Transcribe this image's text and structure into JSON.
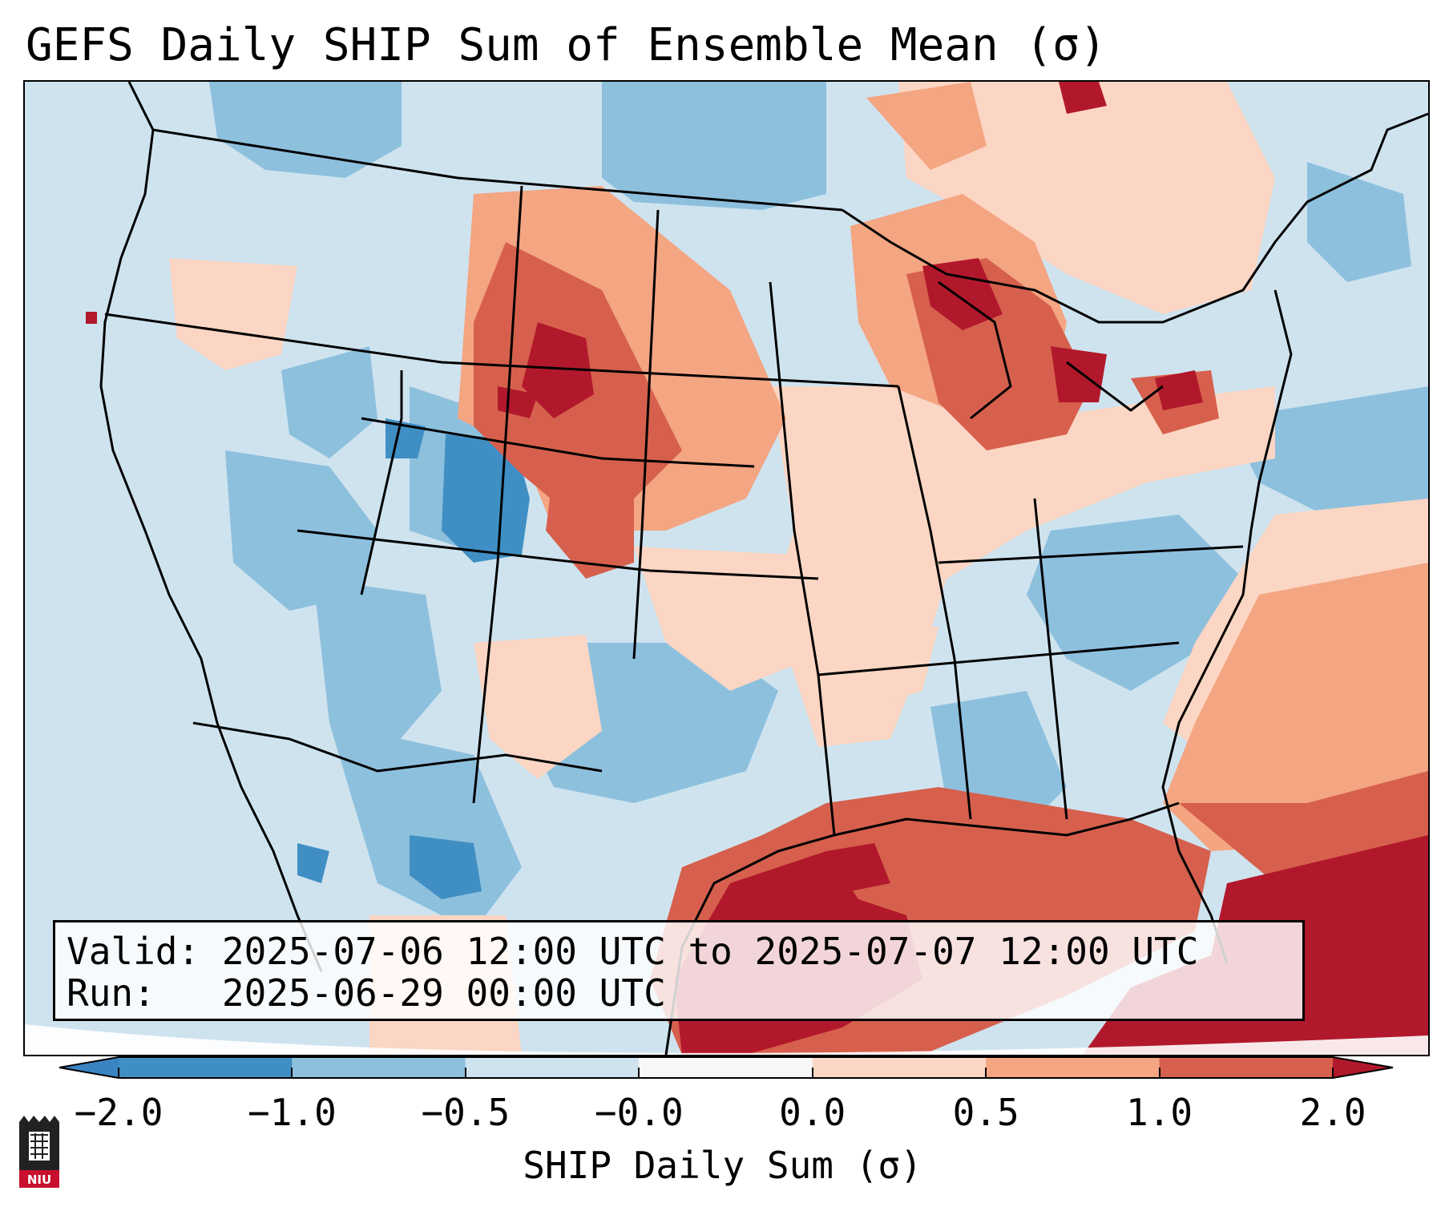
{
  "title": "GEFS Daily SHIP Sum of Ensemble Mean (σ)",
  "valid_line": {
    "label": "Valid:",
    "text": "2025-07-06 12:00 UTC to 2025-07-07 12:00 UTC"
  },
  "run_line": {
    "label": "Run:",
    "text": "2025-06-29 00:00 UTC"
  },
  "colorbar": {
    "label": "SHIP Daily Sum (σ)",
    "ticks": [
      "−2.0",
      "−1.0",
      "−0.5",
      "−0.0",
      "0.0",
      "0.5",
      "1.0",
      "2.0"
    ],
    "bins": [
      {
        "range": "< -2.0",
        "color": "#3a84c2"
      },
      {
        "range": "-2.0 to -1.0",
        "color": "#3f8fc4"
      },
      {
        "range": "-1.0 to -0.5",
        "color": "#8dc0dd"
      },
      {
        "range": "-0.5 to 0.0",
        "color": "#cfe3ef"
      },
      {
        "range": "0.0",
        "color": "#f7f7f7"
      },
      {
        "range": "0.0 to 0.5",
        "color": "#fbd6c4"
      },
      {
        "range": "0.5 to 1.0",
        "color": "#f4a582"
      },
      {
        "range": "1.0 to 2.0",
        "color": "#d6604d"
      },
      {
        "range": "> 2.0",
        "color": "#b2182b"
      }
    ]
  },
  "logo": {
    "text": "NIU",
    "icon": "niu-castle-logo"
  },
  "colors": {
    "strong_negative": "#3f8fc4",
    "negative": "#8dc0dd",
    "weak_negative": "#cfe3ef",
    "weak_positive": "#fbd6c4",
    "positive": "#f4a582",
    "strong_positive": "#d6604d",
    "extreme_positive": "#b2182b"
  }
}
